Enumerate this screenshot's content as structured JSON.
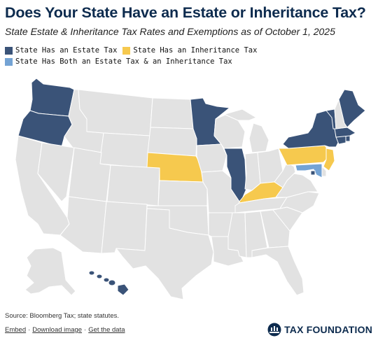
{
  "header": {
    "title": "Does Your State Have an Estate or Inheritance Tax?",
    "subtitle": "State Estate & Inheritance Tax Rates and Exemptions as of October 1, 2025"
  },
  "legend": {
    "estate": "State Has an Estate Tax",
    "inheritance": "State Has an Inheritance Tax",
    "both": "State Has Both an Estate Tax & an Inheritance Tax"
  },
  "colors": {
    "estate": "#3a5378",
    "inheritance": "#f6c94e",
    "both": "#74a3d4",
    "none": "#e2e2e2"
  },
  "map_data": {
    "estate_tax_states": [
      "WA",
      "OR",
      "MN",
      "IL",
      "NY",
      "VT",
      "ME",
      "MA",
      "RI",
      "CT",
      "HI",
      "DC"
    ],
    "inheritance_tax_states": [
      "NE",
      "KY",
      "PA",
      "NJ"
    ],
    "both_states": [
      "MD"
    ]
  },
  "footer": {
    "source": "Source: Bloomberg Tax; state statutes.",
    "embed": "Embed",
    "download": "Download image",
    "get_data": "Get the data",
    "brand": "TAX FOUNDATION"
  }
}
